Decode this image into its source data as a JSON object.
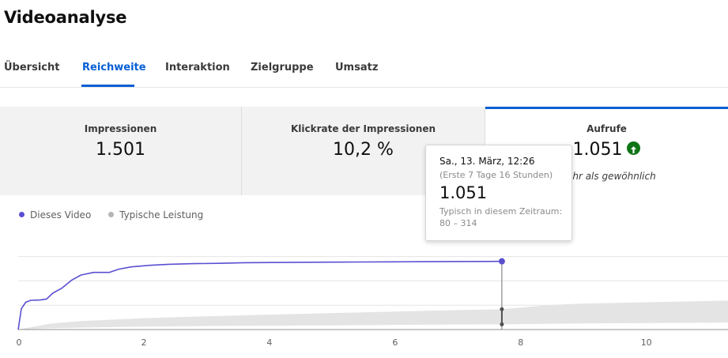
{
  "page": {
    "title": "Videoanalyse"
  },
  "tabs": [
    {
      "label": "Übersicht",
      "active": false
    },
    {
      "label": "Reichweite",
      "active": true
    },
    {
      "label": "Interaktion",
      "active": false
    },
    {
      "label": "Zielgruppe",
      "active": false
    },
    {
      "label": "Umsatz",
      "active": false
    }
  ],
  "cards": [
    {
      "label": "Impressionen",
      "value": "1.501"
    },
    {
      "label": "Klickrate der Impressionen",
      "value": "10,2 %"
    },
    {
      "label": "Aufrufe",
      "value": "1.051",
      "trend_icon": "arrow-up-icon",
      "note": "mehr als gewöhnlich",
      "selected": true
    }
  ],
  "colors": {
    "accent": "#065fd4",
    "series": "#5b4fd1",
    "band": "#e4e4e4",
    "trend": "#107516"
  },
  "legend": [
    {
      "label": "Dieses Video",
      "color": "#5b4fd1"
    },
    {
      "label": "Typische Leistung",
      "color": "#b5b5b5"
    }
  ],
  "tooltip": {
    "date": "Sa., 13. März, 12:26",
    "subtitle": "(Erste 7 Tage 16 Stunden)",
    "value": "1.051",
    "typical_label": "Typisch in diesem Zeitraum:",
    "typical_range": "80 – 314"
  },
  "chart_data": {
    "type": "line",
    "xlabel": "",
    "ylabel": "",
    "xlim": [
      0,
      11.3
    ],
    "ylim": [
      0,
      1400
    ],
    "x_ticks": [
      "0",
      "2",
      "4",
      "6",
      "8",
      "10"
    ],
    "x_tick_values": [
      0,
      2,
      4,
      6,
      8,
      10
    ],
    "grid": true,
    "legend_position": "top-left",
    "series": [
      {
        "name": "Dieses Video",
        "x": [
          0,
          0.05,
          0.12,
          0.2,
          0.35,
          0.45,
          0.55,
          0.7,
          0.85,
          1.0,
          1.2,
          1.45,
          1.6,
          1.8,
          2.1,
          2.4,
          2.8,
          3.2,
          3.6,
          4.0,
          4.5,
          5.0,
          5.5,
          6.0,
          6.5,
          7.0,
          7.5,
          7.7
        ],
        "y": [
          0,
          320,
          420,
          450,
          455,
          470,
          560,
          640,
          760,
          840,
          880,
          880,
          930,
          965,
          990,
          1005,
          1015,
          1020,
          1030,
          1032,
          1036,
          1038,
          1041,
          1043,
          1046,
          1048,
          1050,
          1051
        ]
      },
      {
        "name": "Typische Leistung",
        "x": [
          0,
          0.5,
          1,
          2,
          3,
          4,
          5,
          6,
          7,
          7.7,
          8.5,
          9,
          10,
          11,
          11.3
        ],
        "low": [
          0,
          20,
          30,
          45,
          55,
          60,
          65,
          72,
          78,
          80,
          90,
          95,
          100,
          105,
          110
        ],
        "high": [
          0,
          90,
          130,
          175,
          205,
          230,
          255,
          278,
          300,
          314,
          380,
          400,
          420,
          440,
          445
        ]
      }
    ],
    "tooltip_x": 7.7,
    "tooltip_typical_range": [
      80,
      314
    ]
  }
}
